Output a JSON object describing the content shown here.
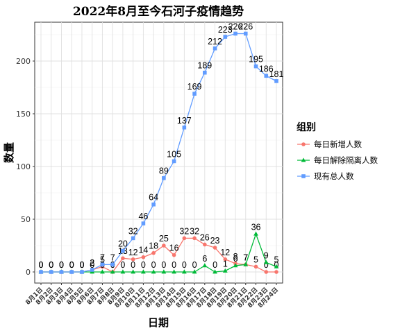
{
  "chart_data": {
    "type": "line",
    "title": "2022年8月至今石河子疫情趋势",
    "xlabel": "日期",
    "ylabel": "数量",
    "ylim": [
      0,
      235
    ],
    "yticks": [
      0,
      50,
      100,
      150,
      200
    ],
    "grid": true,
    "legend_title": "组别",
    "legend_position": "right",
    "categories": [
      "8月1日",
      "8月2日",
      "8月3日",
      "8月4日",
      "8月5日",
      "8月6日",
      "8月7日",
      "8月8日",
      "8月9日",
      "8月10日",
      "8月11日",
      "8月12日",
      "8月13日",
      "8月14日",
      "8月15日",
      "8月16日",
      "8月17日",
      "8月18日",
      "8月19日",
      "8月20日",
      "8月21日",
      "8月22日",
      "8月23日",
      "8月24日"
    ],
    "series": [
      {
        "name": "每日新增人数",
        "color": "#F8766D",
        "marker": "circle",
        "values": [
          0,
          0,
          0,
          0,
          0,
          2,
          5,
          0,
          13,
          12,
          14,
          18,
          25,
          16,
          32,
          32,
          26,
          23,
          12,
          8,
          7,
          5,
          0,
          0
        ]
      },
      {
        "name": "每日解除隔离人数",
        "color": "#00BA38",
        "marker": "triangle",
        "values": [
          0,
          0,
          0,
          0,
          0,
          0,
          0,
          0,
          0,
          0,
          0,
          0,
          0,
          0,
          0,
          0,
          6,
          0,
          1,
          6,
          7,
          36,
          9,
          5
        ]
      },
      {
        "name": "现有总人数",
        "color": "#619CFF",
        "marker": "square",
        "values": [
          0,
          0,
          0,
          0,
          0,
          2,
          7,
          7,
          20,
          32,
          46,
          64,
          89,
          105,
          137,
          169,
          189,
          212,
          223,
          226,
          226,
          195,
          186,
          181
        ]
      }
    ]
  }
}
